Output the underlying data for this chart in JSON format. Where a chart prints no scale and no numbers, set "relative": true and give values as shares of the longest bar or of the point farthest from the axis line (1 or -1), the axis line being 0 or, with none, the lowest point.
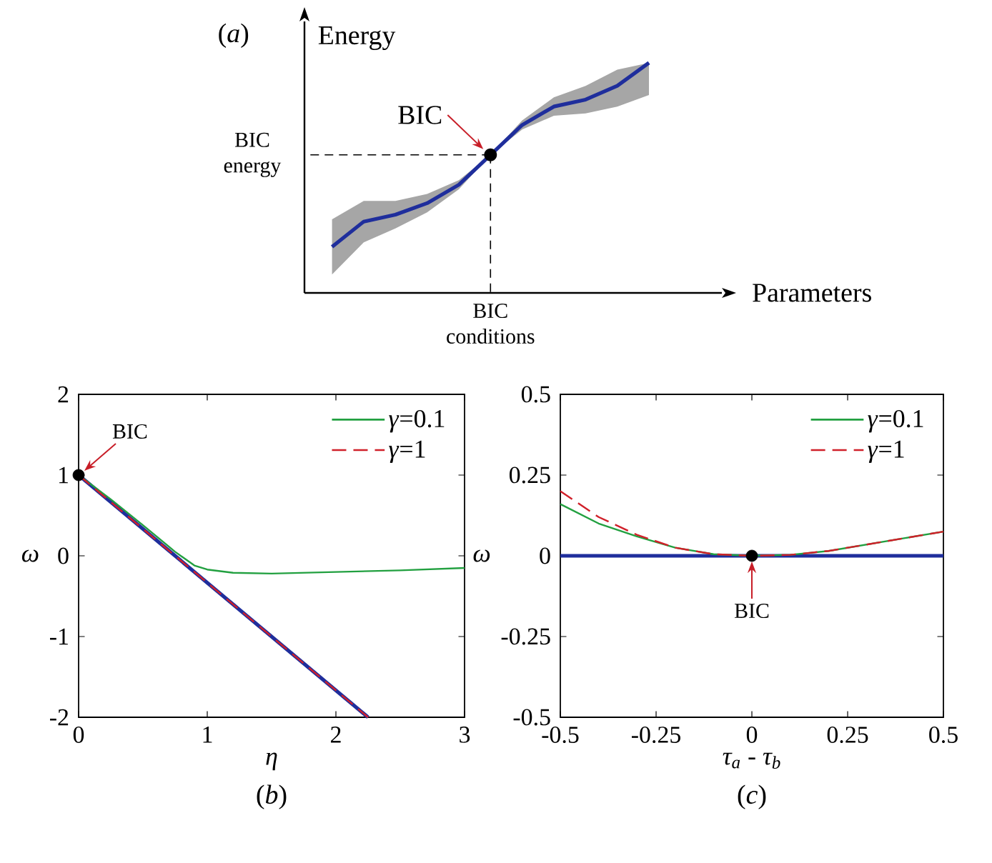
{
  "chart_data": [
    {
      "type": "line",
      "relative": true,
      "title": "(*a*)",
      "xlabel": "Parameters",
      "ylabel": "Energy",
      "categories": [
        null,
        null,
        null,
        null,
        null,
        null,
        null,
        null,
        null,
        null,
        null
      ],
      "series": [
        {
          "color": "#1f2e9c",
          "values": [
            0.2,
            0.31,
            0.34,
            0.39,
            0.47,
            0.6,
            0.73,
            0.81,
            0.84,
            0.9,
            1.0
          ],
          "lower": [
            0.08,
            0.22,
            0.28,
            0.35,
            0.45,
            0.6,
            0.71,
            0.77,
            0.78,
            0.81,
            0.86
          ],
          "upper": [
            0.32,
            0.4,
            0.4,
            0.43,
            0.49,
            0.6,
            0.75,
            0.85,
            0.9,
            0.97,
            1.0
          ]
        }
      ],
      "annotations": [
        "BIC",
        "BIC energy",
        "BIC conditions"
      ]
    },
    {
      "type": "line",
      "title": "(*b*)",
      "xlabel": "η",
      "ylabel": "ω",
      "xlim": [
        0,
        3
      ],
      "ylim": [
        -2,
        2
      ],
      "xticks": [
        0,
        1,
        2,
        3
      ],
      "yticks": [
        -2,
        -1,
        0,
        1,
        2
      ],
      "legend": "top right",
      "series": [
        {
          "color": "#1f2e9c",
          "x": [
            0,
            2.25
          ],
          "values": [
            1,
            -2
          ]
        },
        {
          "name": "*γ*=0.1",
          "color": "#22a040",
          "x": [
            0,
            0.25,
            0.5,
            0.75,
            0.9,
            1.0,
            1.2,
            1.5,
            2,
            2.5,
            3
          ],
          "values": [
            1,
            0.7,
            0.38,
            0.05,
            -0.12,
            -0.17,
            -0.21,
            -0.22,
            -0.2,
            -0.18,
            -0.15
          ]
        },
        {
          "name": "*γ*=1",
          "color": "#d0202a",
          "line_style": "dashed",
          "x": [
            0,
            2.25
          ],
          "values": [
            1,
            -2
          ]
        },
        {
          "type": "scatter",
          "marker": "circle",
          "color": "#000000",
          "x": [
            0
          ],
          "values": [
            1
          ]
        }
      ],
      "annotations": [
        {
          "text": "BIC",
          "x": 0,
          "y": 1
        }
      ]
    },
    {
      "type": "line",
      "title": "(*c*)",
      "xlabel": "*τ*$_{a}$ - *τ*$_{b}$",
      "ylabel": "ω",
      "xlim": [
        -0.5,
        0.5
      ],
      "ylim": [
        -0.5,
        0.5
      ],
      "xticks": [
        -0.5,
        -0.25,
        0,
        0.25,
        0.5
      ],
      "yticks": [
        -0.5,
        -0.25,
        0,
        0.25,
        0.5
      ],
      "legend": "top right",
      "series": [
        {
          "color": "#1f2e9c",
          "x": [
            -0.5,
            0.5
          ],
          "values": [
            0,
            0
          ]
        },
        {
          "name": "*γ*=0.1",
          "color": "#22a040",
          "x": [
            -0.5,
            -0.4,
            -0.3,
            -0.2,
            -0.1,
            0,
            0.1,
            0.2,
            0.3,
            0.4,
            0.5
          ],
          "values": [
            0.16,
            0.1,
            0.06,
            0.025,
            0.005,
            0,
            0.003,
            0.015,
            0.035,
            0.055,
            0.075
          ]
        },
        {
          "name": "*γ*=1",
          "color": "#d0202a",
          "line_style": "dashed",
          "x": [
            -0.5,
            -0.4,
            -0.3,
            -0.2,
            -0.1,
            0,
            0.1,
            0.2,
            0.3,
            0.4,
            0.5
          ],
          "values": [
            0.2,
            0.12,
            0.065,
            0.025,
            0.005,
            0,
            0.003,
            0.015,
            0.035,
            0.055,
            0.075
          ]
        },
        {
          "type": "scatter",
          "marker": "circle",
          "color": "#000000",
          "x": [
            0
          ],
          "values": [
            0
          ]
        }
      ],
      "annotations": [
        {
          "text": "BIC",
          "x": 0,
          "y": 0
        }
      ]
    }
  ]
}
